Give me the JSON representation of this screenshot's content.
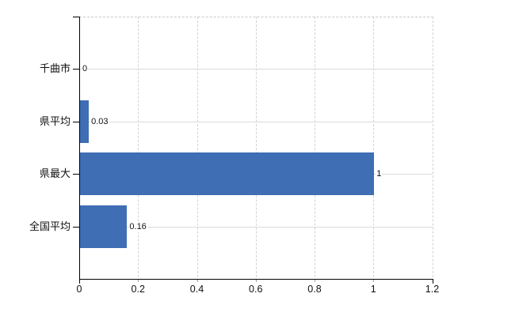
{
  "chart_data": {
    "type": "bar",
    "orientation": "horizontal",
    "title": "",
    "xlabel": "",
    "ylabel": "",
    "categories": [
      "千曲市",
      "県平均",
      "県最大",
      "全国平均"
    ],
    "values": [
      0,
      0.03,
      1,
      0.16
    ],
    "value_labels": [
      "0",
      "0.03",
      "1",
      "0.16"
    ],
    "x_ticks": [
      0,
      0.2,
      0.4,
      0.6,
      0.8,
      1,
      1.2
    ],
    "x_tick_labels": [
      "0",
      "0.2",
      "0.4",
      "0.6",
      "0.8",
      "1",
      "1.2"
    ],
    "xlim": [
      0,
      1.2
    ],
    "grid": true,
    "legend_position": "none",
    "colors": {
      "bar": "#3f6eb4",
      "axis": "#000000",
      "grid_solid": "#dadada",
      "grid_dashed": "#cccccc",
      "text": "#111111",
      "background": "#ffffff"
    }
  }
}
